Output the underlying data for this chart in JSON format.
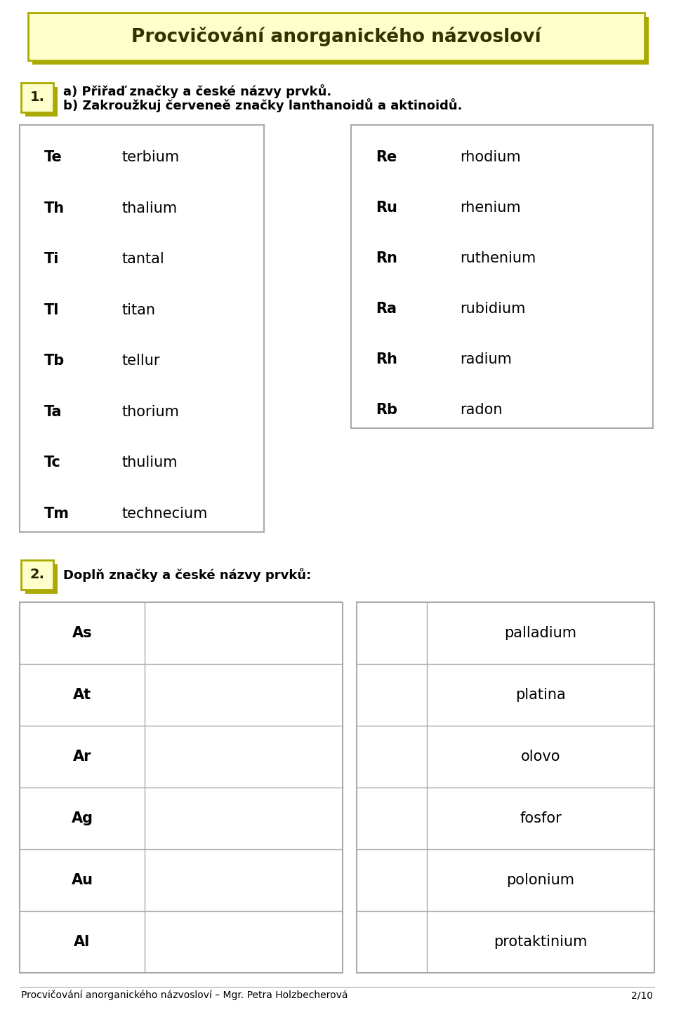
{
  "title": "Procvičování anorganického názvosloví",
  "title_bg": "#FFFFCC",
  "title_border": "#AAAA00",
  "page_bg": "#FFFFFF",
  "section1_label": "1.",
  "section1_text_a": "a) Přiřaď značky a české názvy prvků.",
  "section1_text_b": "b) Zakroužkuj červeneě značky lanthanoidů a aktinoidů.",
  "table1_left": [
    [
      "Te",
      "terbium"
    ],
    [
      "Th",
      "thalium"
    ],
    [
      "Ti",
      "tantal"
    ],
    [
      "Tl",
      "titan"
    ],
    [
      "Tb",
      "tellur"
    ],
    [
      "Ta",
      "thorium"
    ],
    [
      "Tc",
      "thulium"
    ],
    [
      "Tm",
      "technecium"
    ]
  ],
  "table1_right": [
    [
      "Re",
      "rhodium"
    ],
    [
      "Ru",
      "rhenium"
    ],
    [
      "Rn",
      "ruthenium"
    ],
    [
      "Ra",
      "rubidium"
    ],
    [
      "Rh",
      "radium"
    ],
    [
      "Rb",
      "radon"
    ]
  ],
  "section2_label": "2.",
  "section2_text": "Doplň značky a české názvy prvků:",
  "table2_left": [
    "As",
    "At",
    "Ar",
    "Ag",
    "Au",
    "Al"
  ],
  "table2_right": [
    "palladium",
    "platina",
    "olovo",
    "fosfor",
    "polonium",
    "protaktinium"
  ],
  "footer": "Procvičování anorganického názvosloví – Mgr. Petra Holzbecherová",
  "page_num": "2/10",
  "border_color": "#AAAAAA",
  "label_bg": "#FFFFCC",
  "label_border": "#AAAA00",
  "shadow_color": "#AAAA00"
}
